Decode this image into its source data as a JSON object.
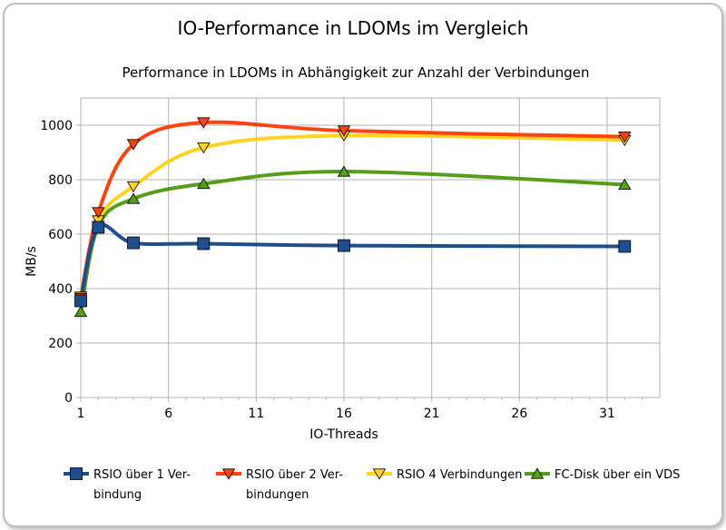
{
  "chart_data": {
    "type": "line",
    "title": "IO-Performance in LDOMs im Vergleich",
    "subtitle": "Performance in LDOMs in Abhängigkeit zur Anzahl der Verbindungen",
    "xlabel": "IO-Threads",
    "ylabel": "MB/s",
    "xlim": [
      1,
      34
    ],
    "ylim": [
      0,
      1100
    ],
    "x_ticks": [
      1,
      6,
      11,
      16,
      21,
      26,
      31
    ],
    "y_ticks": [
      0,
      200,
      400,
      600,
      800,
      1000
    ],
    "grid": true,
    "legend_position": "bottom",
    "x": [
      1,
      2,
      4,
      8,
      16,
      32
    ],
    "series": [
      {
        "name": "RSIO über 1 Verbindung",
        "legend_lines": [
          "RSIO über 1 Ver-",
          "bindung"
        ],
        "color": "#1f4e8c",
        "marker": "square",
        "values": [
          355,
          625,
          568,
          565,
          558,
          555
        ]
      },
      {
        "name": "RSIO über 2 Verbindungen",
        "legend_lines": [
          "RSIO über 2 Ver-",
          "bindungen"
        ],
        "color": "#ff420e",
        "marker": "triangle-down",
        "values": [
          365,
          680,
          930,
          1010,
          980,
          958
        ]
      },
      {
        "name": "RSIO 4 Verbindungen",
        "legend_lines": [
          "RSIO 4 Verbindungen"
        ],
        "color": "#ffd320",
        "marker": "triangle-down",
        "values": [
          370,
          650,
          775,
          918,
          962,
          945
        ]
      },
      {
        "name": "FC-Disk über ein VDS",
        "legend_lines": [
          "FC-Disk über ein VDS"
        ],
        "color": "#579d1c",
        "marker": "triangle-up",
        "values": [
          315,
          630,
          730,
          785,
          830,
          782
        ]
      }
    ]
  }
}
